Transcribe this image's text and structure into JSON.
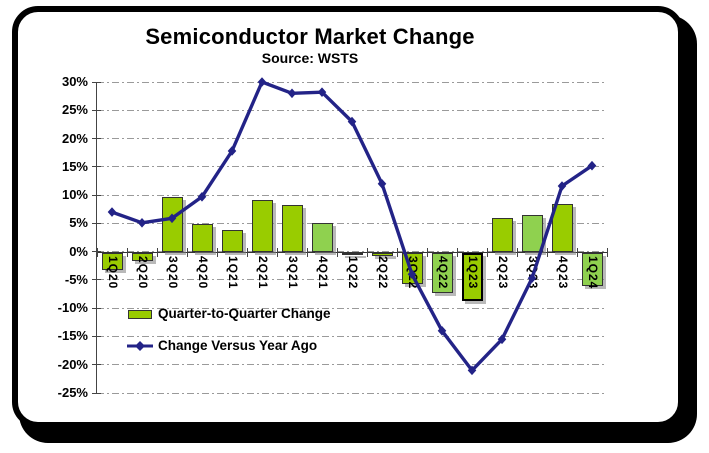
{
  "title": "Semiconductor Market Change",
  "subtitle": "Source: WSTS",
  "legend": {
    "bar_label": "Quarter-to-Quarter Change",
    "line_label": "Change Versus Year Ago"
  },
  "colors": {
    "bar_fill": "#99CC00",
    "bar_fill_light": "#8FD14F",
    "bar_border": "#333333",
    "highlight_border": "#000000",
    "line": "#232387",
    "grid": "#9A9A9A",
    "axis": "#444444",
    "card_border": "#000000",
    "background": "#FFFFFF"
  },
  "chart_data": {
    "type": "bar",
    "title": "Semiconductor Market Change",
    "subtitle": "Source: WSTS",
    "categories": [
      "1Q20",
      "2Q20",
      "3Q20",
      "4Q20",
      "1Q21",
      "2Q21",
      "3Q21",
      "4Q21",
      "1Q22",
      "2Q22",
      "3Q22",
      "4Q22",
      "1Q23",
      "2Q23",
      "3Q23",
      "4Q23",
      "1Q24"
    ],
    "series": [
      {
        "name": "Quarter-to-Quarter Change",
        "type": "bar",
        "values": [
          -3.1,
          -1.5,
          9.7,
          4.8,
          3.8,
          9.1,
          8.2,
          5.0,
          -0.5,
          -0.6,
          -5.6,
          -7.1,
          -8.5,
          6.0,
          6.4,
          8.4,
          -5.9
        ]
      },
      {
        "name": "Change Versus Year Ago",
        "type": "line",
        "values": [
          7.0,
          5.1,
          5.9,
          9.7,
          17.8,
          30.0,
          28.0,
          28.2,
          23.0,
          12.0,
          -4.0,
          -14.0,
          -21.0,
          -15.5,
          -4.7,
          11.6,
          15.2
        ]
      }
    ],
    "bar_light_categories": [
      "4Q21",
      "4Q22",
      "3Q23",
      "1Q24"
    ],
    "highlighted_bar": "1Q23",
    "xlabel": "",
    "ylabel": "",
    "ylim": [
      -25,
      30
    ],
    "ytick_step": 5,
    "ytick_labels": [
      "30%",
      "25%",
      "20%",
      "15%",
      "10%",
      "5%",
      "0%",
      "-5%",
      "-10%",
      "-15%",
      "-20%",
      "-25%"
    ],
    "grid": true,
    "legend_position": "inside-left"
  }
}
